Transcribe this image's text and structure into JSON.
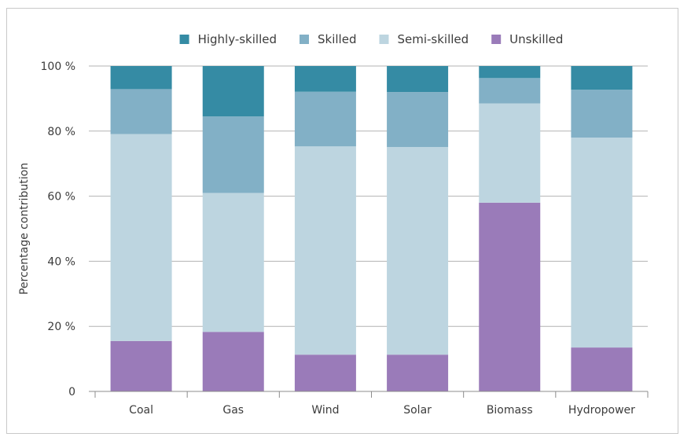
{
  "chart_data": {
    "type": "bar",
    "stacked": true,
    "categories": [
      "Coal",
      "Gas",
      "Wind",
      "Solar",
      "Biomass",
      "Hydropower"
    ],
    "series": [
      {
        "name": "Unskilled",
        "color": "#9a7bb9",
        "values": [
          15.5,
          18.3,
          11.3,
          11.3,
          58.0,
          13.5
        ]
      },
      {
        "name": "Semi-skilled",
        "color": "#bdd5e0",
        "values": [
          63.6,
          42.7,
          64.0,
          63.8,
          30.5,
          64.5
        ]
      },
      {
        "name": "Skilled",
        "color": "#82b0c6",
        "values": [
          13.8,
          23.5,
          16.8,
          16.9,
          7.8,
          14.7
        ]
      },
      {
        "name": "Highly-skilled",
        "color": "#358ba4",
        "values": [
          7.1,
          15.5,
          7.9,
          8.0,
          3.7,
          7.3
        ]
      }
    ],
    "legend_order": [
      "Highly-skilled",
      "Skilled",
      "Semi-skilled",
      "Unskilled"
    ],
    "ylabel": "Percentage contribution",
    "ylim": [
      0,
      100
    ],
    "yticks": [
      0,
      20,
      40,
      60,
      80,
      100
    ],
    "ytick_labels": [
      "0",
      "20 %",
      "40 %",
      "60 %",
      "80 %",
      "100 %"
    ],
    "grid": true,
    "legend_position": "top"
  }
}
